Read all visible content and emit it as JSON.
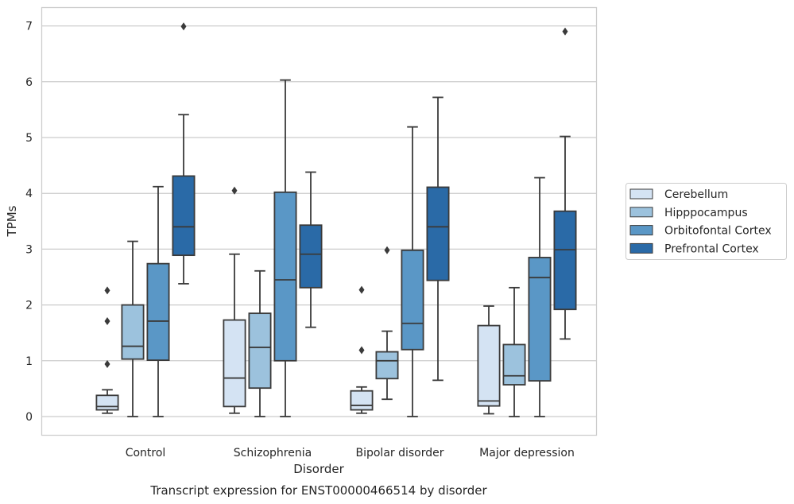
{
  "chart_data": {
    "type": "box",
    "title": "Transcript expression for ENST00000466514 by disorder",
    "xlabel": "Disorder",
    "ylabel": "TPMs",
    "ylim": [
      -0.33,
      7.35
    ],
    "yticks": [
      0,
      1,
      2,
      3,
      4,
      5,
      6,
      7
    ],
    "grid": "horizontal",
    "legend_position": "right",
    "categories": [
      "Control",
      "Schizophrenia",
      "Bipolar disorder",
      "Major depression"
    ],
    "series": [
      {
        "name": "Cerebellum",
        "color": "#d4e3f3",
        "boxes": [
          {
            "whislo": 0.06,
            "q1": 0.12,
            "med": 0.18,
            "q3": 0.38,
            "whishi": 0.48,
            "fliers": [
              0.94,
              1.71,
              2.26
            ]
          },
          {
            "whislo": 0.06,
            "q1": 0.18,
            "med": 0.69,
            "q3": 1.73,
            "whishi": 2.91,
            "fliers": [
              4.05
            ]
          },
          {
            "whislo": 0.06,
            "q1": 0.12,
            "med": 0.2,
            "q3": 0.46,
            "whishi": 0.53,
            "fliers": [
              1.19,
              2.27
            ]
          },
          {
            "whislo": 0.05,
            "q1": 0.19,
            "med": 0.28,
            "q3": 1.63,
            "whishi": 1.98,
            "fliers": []
          }
        ]
      },
      {
        "name": "Hipppocampus",
        "color": "#9cc2dd",
        "boxes": [
          {
            "whislo": 0.0,
            "q1": 1.03,
            "med": 1.26,
            "q3": 2.0,
            "whishi": 3.14,
            "fliers": []
          },
          {
            "whislo": 0.0,
            "q1": 0.51,
            "med": 1.24,
            "q3": 1.85,
            "whishi": 2.61,
            "fliers": []
          },
          {
            "whislo": 0.31,
            "q1": 0.68,
            "med": 1.0,
            "q3": 1.16,
            "whishi": 1.53,
            "fliers": [
              2.98
            ]
          },
          {
            "whislo": 0.0,
            "q1": 0.57,
            "med": 0.73,
            "q3": 1.29,
            "whishi": 2.31,
            "fliers": []
          }
        ]
      },
      {
        "name": "Orbitofontal Cortex",
        "color": "#5a97c6",
        "boxes": [
          {
            "whislo": 0.0,
            "q1": 1.01,
            "med": 1.71,
            "q3": 2.74,
            "whishi": 4.12,
            "fliers": []
          },
          {
            "whislo": 0.0,
            "q1": 1.0,
            "med": 2.45,
            "q3": 4.02,
            "whishi": 6.03,
            "fliers": []
          },
          {
            "whislo": 0.0,
            "q1": 1.2,
            "med": 1.67,
            "q3": 2.98,
            "whishi": 5.19,
            "fliers": []
          },
          {
            "whislo": 0.0,
            "q1": 0.64,
            "med": 2.49,
            "q3": 2.85,
            "whishi": 4.28,
            "fliers": []
          }
        ]
      },
      {
        "name": "Prefrontal Cortex",
        "color": "#2a6aa7",
        "boxes": [
          {
            "whislo": 2.38,
            "q1": 2.89,
            "med": 3.4,
            "q3": 4.31,
            "whishi": 5.41,
            "fliers": [
              6.99
            ]
          },
          {
            "whislo": 1.6,
            "q1": 2.31,
            "med": 2.91,
            "q3": 3.43,
            "whishi": 4.38,
            "fliers": []
          },
          {
            "whislo": 0.65,
            "q1": 2.44,
            "med": 3.4,
            "q3": 4.11,
            "whishi": 5.72,
            "fliers": []
          },
          {
            "whislo": 1.39,
            "q1": 1.92,
            "med": 2.99,
            "q3": 3.68,
            "whishi": 5.02,
            "fliers": [
              6.9
            ]
          }
        ]
      }
    ]
  }
}
